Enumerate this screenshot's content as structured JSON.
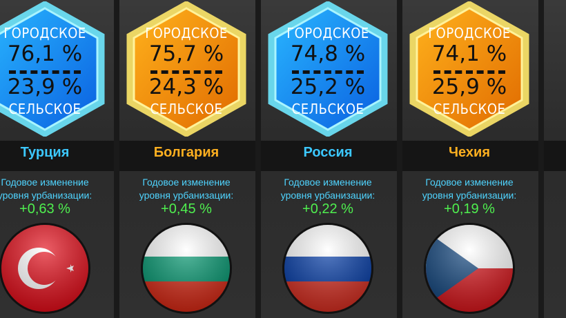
{
  "labels": {
    "urban": "ГОРОДСКОЕ",
    "rural": "СЕЛЬСКОЕ",
    "change_line1": "Годовое изменение",
    "change_line2": "уровня урбанизации:"
  },
  "colors": {
    "blue_hex": "#1e9bff",
    "orange_hex": "#ff9a0a",
    "blue_name": "#3cc8ff",
    "orange_name": "#ffb020",
    "change_label": "#4fd4ff",
    "change_value": "#4ff04f"
  },
  "countries": [
    {
      "name": "Турция",
      "urban": "76,1 %",
      "rural": "23,9 %",
      "change": "+0,63 %",
      "theme": "blue",
      "flag": "turkey-flag-icon"
    },
    {
      "name": "Болгария",
      "urban": "75,7 %",
      "rural": "24,3 %",
      "change": "+0,45 %",
      "theme": "orange",
      "flag": "bulgaria-flag-icon"
    },
    {
      "name": "Россия",
      "urban": "74,8 %",
      "rural": "25,2 %",
      "change": "+0,22 %",
      "theme": "blue",
      "flag": "russia-flag-icon"
    },
    {
      "name": "Чехия",
      "urban": "74,1 %",
      "rural": "25,9 %",
      "change": "+0,19 %",
      "theme": "orange",
      "flag": "czech-flag-icon"
    }
  ]
}
